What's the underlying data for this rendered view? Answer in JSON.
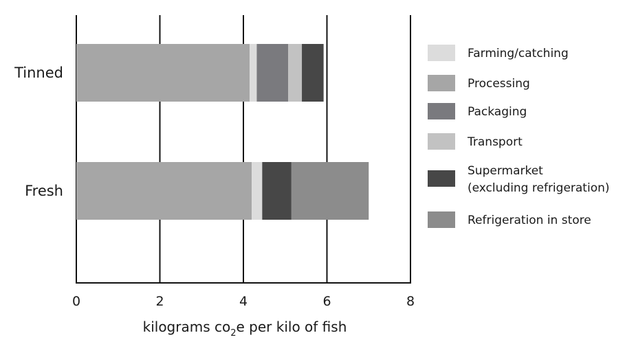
{
  "chart_data": {
    "type": "bar",
    "orientation": "horizontal",
    "stacked": true,
    "categories": [
      "Tinned",
      "Fresh"
    ],
    "xlabel": "kilograms co2e per kilo of fish",
    "xlabel_parts": {
      "before": "kilograms co",
      "subscript": "2",
      "after": "e per kilo of fish"
    },
    "xlim": [
      0,
      8
    ],
    "xticks": [
      "0",
      "2",
      "4",
      "6",
      "8"
    ],
    "grid": "vertical",
    "legend_position": "right",
    "series": [
      {
        "name": "Processing",
        "color": "#a6a6a6",
        "values": [
          4.15,
          4.2
        ]
      },
      {
        "name": "Farming/catching",
        "color": "#dcdcdc",
        "values": [
          0.17,
          0.25
        ]
      },
      {
        "name": "Packaging",
        "color": "#7a7a7e",
        "values": [
          0.75,
          0
        ]
      },
      {
        "name": "Transport",
        "color": "#c2c2c2",
        "values": [
          0.33,
          0
        ]
      },
      {
        "name": "Supermarket (excluding refrigeration)",
        "color": "#474747",
        "values": [
          0.52,
          0.7
        ]
      },
      {
        "name": "Refrigeration in store",
        "color": "#8c8c8c",
        "values": [
          0,
          1.85
        ]
      }
    ],
    "legend": [
      {
        "lines": [
          "Farming/catching"
        ],
        "color": "#dcdcdc"
      },
      {
        "lines": [
          "Processing"
        ],
        "color": "#a6a6a6"
      },
      {
        "lines": [
          "Packaging"
        ],
        "color": "#7a7a7e"
      },
      {
        "lines": [
          "Transport"
        ],
        "color": "#c2c2c2"
      },
      {
        "lines": [
          "Supermarket",
          "(excluding refrigeration)"
        ],
        "color": "#474747"
      },
      {
        "lines": [
          "Refrigeration in store"
        ],
        "color": "#8c8c8c"
      }
    ]
  }
}
